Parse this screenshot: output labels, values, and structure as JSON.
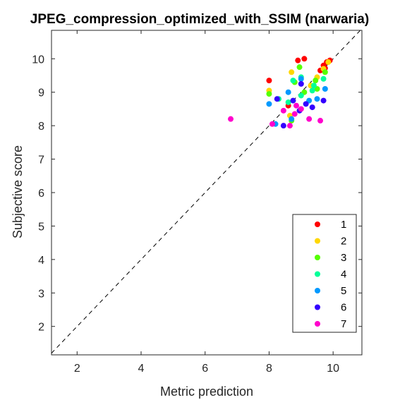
{
  "chart_data": {
    "type": "scatter",
    "title": "JPEG_compression_optimized_with_SSIM (narwaria)",
    "xlabel": "Metric prediction",
    "ylabel": "Subjective score",
    "xlim": [
      1.2,
      10.9
    ],
    "ylim": [
      1.15,
      10.85
    ],
    "xticks": [
      2,
      4,
      6,
      8,
      10
    ],
    "yticks": [
      2,
      3,
      4,
      5,
      6,
      7,
      8,
      9,
      10
    ],
    "reference_line": "y = x (dashed)",
    "grid": false,
    "legend_position": "bottom-right",
    "series": [
      {
        "name": "1",
        "color": "#ff0000",
        "points": [
          [
            9.1,
            10.0
          ],
          [
            8.9,
            9.95
          ],
          [
            9.7,
            9.8
          ],
          [
            9.75,
            9.72
          ],
          [
            9.8,
            9.9
          ],
          [
            9.9,
            9.95
          ],
          [
            8.0,
            9.35
          ],
          [
            9.6,
            9.65
          ],
          [
            8.6,
            8.6
          ]
        ]
      },
      {
        "name": "2",
        "color": "#ffd700",
        "points": [
          [
            8.7,
            9.6
          ],
          [
            9.85,
            9.9
          ],
          [
            9.5,
            9.45
          ],
          [
            8.0,
            9.05
          ],
          [
            8.65,
            8.3
          ],
          [
            9.3,
            9.2
          ],
          [
            9.7,
            9.7
          ]
        ]
      },
      {
        "name": "3",
        "color": "#55ff00",
        "points": [
          [
            8.95,
            9.75
          ],
          [
            9.45,
            9.35
          ],
          [
            9.75,
            9.6
          ],
          [
            9.1,
            9.0
          ],
          [
            8.8,
            9.3
          ],
          [
            8.0,
            8.95
          ],
          [
            9.5,
            9.1
          ],
          [
            8.7,
            8.15
          ]
        ]
      },
      {
        "name": "4",
        "color": "#00ff99",
        "points": [
          [
            8.75,
            9.35
          ],
          [
            9.0,
            9.45
          ],
          [
            9.4,
            9.2
          ],
          [
            9.7,
            9.4
          ],
          [
            9.35,
            9.05
          ],
          [
            8.6,
            8.7
          ],
          [
            8.3,
            8.8
          ],
          [
            9.0,
            8.9
          ]
        ]
      },
      {
        "name": "5",
        "color": "#0099ff",
        "points": [
          [
            8.0,
            8.65
          ],
          [
            8.6,
            9.0
          ],
          [
            9.0,
            9.4
          ],
          [
            9.75,
            9.1
          ],
          [
            9.5,
            8.8
          ],
          [
            9.25,
            8.75
          ],
          [
            8.7,
            8.2
          ],
          [
            8.2,
            8.05
          ]
        ]
      },
      {
        "name": "6",
        "color": "#3300ff",
        "points": [
          [
            8.25,
            8.8
          ],
          [
            8.75,
            8.75
          ],
          [
            9.35,
            8.55
          ],
          [
            9.7,
            8.75
          ],
          [
            8.95,
            8.45
          ],
          [
            9.15,
            8.65
          ],
          [
            8.45,
            8.0
          ],
          [
            9.0,
            9.25
          ]
        ]
      },
      {
        "name": "7",
        "color": "#ff00cc",
        "points": [
          [
            6.8,
            8.2
          ],
          [
            8.1,
            8.05
          ],
          [
            8.45,
            8.45
          ],
          [
            8.65,
            8.0
          ],
          [
            8.8,
            8.35
          ],
          [
            9.0,
            8.5
          ],
          [
            9.25,
            8.2
          ],
          [
            9.6,
            8.15
          ],
          [
            8.85,
            8.6
          ]
        ]
      }
    ]
  }
}
